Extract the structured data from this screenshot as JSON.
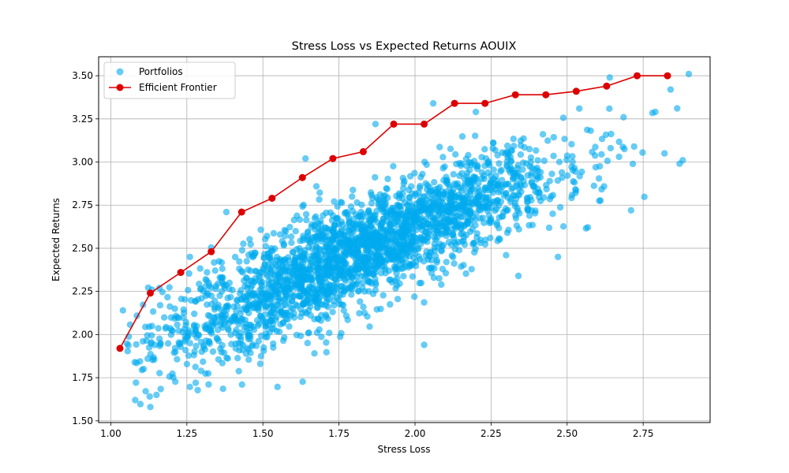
{
  "chart_data": {
    "type": "scatter",
    "title": "Stress Loss vs Expected Returns AOUIX",
    "xlabel": "Stress Loss",
    "ylabel": "Expected Returns",
    "xlim": [
      0.96,
      2.97
    ],
    "ylim": [
      1.49,
      3.61
    ],
    "xticks": [
      1.0,
      1.25,
      1.5,
      1.75,
      2.0,
      2.25,
      2.5,
      2.75
    ],
    "xtick_labels": [
      "1.00",
      "1.25",
      "1.50",
      "1.75",
      "2.00",
      "2.25",
      "2.50",
      "2.75"
    ],
    "yticks": [
      1.5,
      1.75,
      2.0,
      2.25,
      2.5,
      2.75,
      3.0,
      3.25,
      3.5
    ],
    "ytick_labels": [
      "1.50",
      "1.75",
      "2.00",
      "2.25",
      "2.50",
      "2.75",
      "3.00",
      "3.25",
      "3.50"
    ],
    "grid": true,
    "legend": {
      "position": "top-left",
      "entries": [
        "Portfolios",
        "Efficient Frontier"
      ]
    },
    "series": [
      {
        "name": "Portfolios",
        "kind": "scatter",
        "color": "#00aaee",
        "cloud": {
          "x_range": [
            1.05,
            2.9
          ],
          "y_range": [
            1.58,
            3.51
          ],
          "trend": [
            [
              1.1,
              1.92
            ],
            [
              1.3,
              2.05
            ],
            [
              1.5,
              2.22
            ],
            [
              1.75,
              2.43
            ],
            [
              2.0,
              2.62
            ],
            [
              2.25,
              2.8
            ],
            [
              2.5,
              2.96
            ],
            [
              2.75,
              3.12
            ]
          ]
        },
        "outliers": [
          [
            1.04,
            2.14
          ],
          [
            1.08,
            1.62
          ],
          [
            1.13,
            1.58
          ],
          [
            1.16,
            2.27
          ],
          [
            1.26,
            2.45
          ],
          [
            1.38,
            2.71
          ],
          [
            1.64,
            3.02
          ],
          [
            1.87,
            3.22
          ],
          [
            2.03,
            1.94
          ],
          [
            2.06,
            3.34
          ],
          [
            2.2,
            3.29
          ],
          [
            2.34,
            2.34
          ],
          [
            2.47,
            2.45
          ],
          [
            2.54,
            3.31
          ],
          [
            2.64,
            3.49
          ],
          [
            2.71,
            2.72
          ],
          [
            2.79,
            3.29
          ],
          [
            2.82,
            3.05
          ],
          [
            2.84,
            3.42
          ],
          [
            2.87,
            2.99
          ],
          [
            2.88,
            3.01
          ],
          [
            2.9,
            3.51
          ]
        ]
      },
      {
        "name": "Efficient Frontier",
        "kind": "line",
        "color": "#dd0000",
        "x": [
          1.03,
          1.13,
          1.23,
          1.33,
          1.43,
          1.53,
          1.63,
          1.73,
          1.83,
          1.93,
          2.03,
          2.13,
          2.23,
          2.33,
          2.43,
          2.53,
          2.63,
          2.73,
          2.83
        ],
        "y": [
          1.92,
          2.24,
          2.36,
          2.48,
          2.71,
          2.79,
          2.91,
          3.02,
          3.06,
          3.22,
          3.22,
          3.34,
          3.34,
          3.39,
          3.39,
          3.41,
          3.44,
          3.5,
          3.5
        ]
      }
    ]
  }
}
